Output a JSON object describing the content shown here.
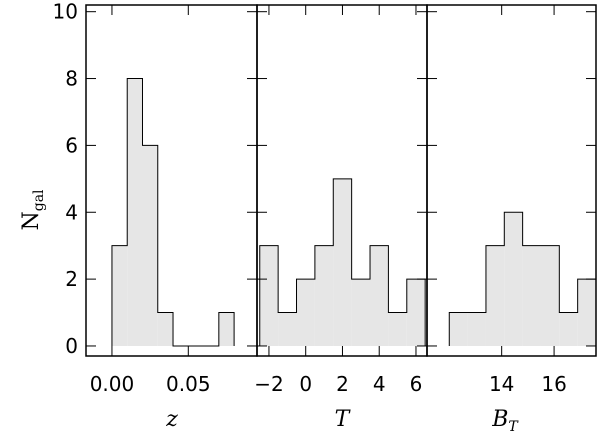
{
  "chart_data": [
    {
      "type": "bar",
      "panel": "z",
      "xlabel": "z",
      "ylabel_main": "N",
      "ylabel_sub": "gal",
      "xlim": [
        -0.017,
        0.095
      ],
      "ylim": [
        -0.3,
        10.2
      ],
      "xticks": [
        0.0,
        0.05
      ],
      "xticklabels": [
        "0.00",
        "0.05"
      ],
      "yticks": [
        0,
        2,
        4,
        6,
        8,
        10
      ],
      "bins": [
        {
          "x0": 0.0,
          "x1": 0.01,
          "value": 3
        },
        {
          "x0": 0.01,
          "x1": 0.02,
          "value": 8
        },
        {
          "x0": 0.02,
          "x1": 0.03,
          "value": 6
        },
        {
          "x0": 0.03,
          "x1": 0.04,
          "value": 1
        },
        {
          "x0": 0.04,
          "x1": 0.05,
          "value": 0
        },
        {
          "x0": 0.05,
          "x1": 0.06,
          "value": 0
        },
        {
          "x0": 0.06,
          "x1": 0.07,
          "value": 0
        },
        {
          "x0": 0.07,
          "x1": 0.08,
          "value": 1
        }
      ]
    },
    {
      "type": "bar",
      "panel": "T",
      "xlabel": "T",
      "xlim": [
        -2.65,
        6.6
      ],
      "ylim": [
        -0.3,
        10.2
      ],
      "xticks": [
        -2,
        0,
        2,
        4,
        6
      ],
      "xticklabels": [
        "−2",
        "0",
        "2",
        "4",
        "6"
      ],
      "bins": [
        {
          "x0": -2.5,
          "x1": -1.5,
          "value": 3
        },
        {
          "x0": -1.5,
          "x1": -0.5,
          "value": 1
        },
        {
          "x0": -0.5,
          "x1": 0.5,
          "value": 2
        },
        {
          "x0": 0.5,
          "x1": 1.5,
          "value": 3
        },
        {
          "x0": 1.5,
          "x1": 2.5,
          "value": 5
        },
        {
          "x0": 2.5,
          "x1": 3.5,
          "value": 2
        },
        {
          "x0": 3.5,
          "x1": 4.5,
          "value": 3
        },
        {
          "x0": 4.5,
          "x1": 5.5,
          "value": 1
        },
        {
          "x0": 5.5,
          "x1": 6.5,
          "value": 2
        }
      ]
    },
    {
      "type": "bar",
      "panel": "BT",
      "xlabel": "B",
      "xlabel_sub": "T",
      "xlim": [
        11.15,
        17.6
      ],
      "ylim": [
        -0.3,
        10.2
      ],
      "xticks": [
        14,
        16
      ],
      "xticklabels": [
        "14",
        "16"
      ],
      "bins": [
        {
          "x0": 12.0,
          "x1": 12.7,
          "value": 1
        },
        {
          "x0": 12.7,
          "x1": 13.4,
          "value": 1
        },
        {
          "x0": 13.4,
          "x1": 14.1,
          "value": 3
        },
        {
          "x0": 14.1,
          "x1": 14.8,
          "value": 4
        },
        {
          "x0": 14.8,
          "x1": 15.5,
          "value": 3
        },
        {
          "x0": 15.5,
          "x1": 16.2,
          "value": 3
        },
        {
          "x0": 16.2,
          "x1": 16.9,
          "value": 1
        },
        {
          "x0": 16.9,
          "x1": 17.6,
          "value": 2
        }
      ]
    }
  ],
  "colors": {
    "bar_fill": "#e6e6e6",
    "stroke": "#000000",
    "background": "#ffffff"
  }
}
